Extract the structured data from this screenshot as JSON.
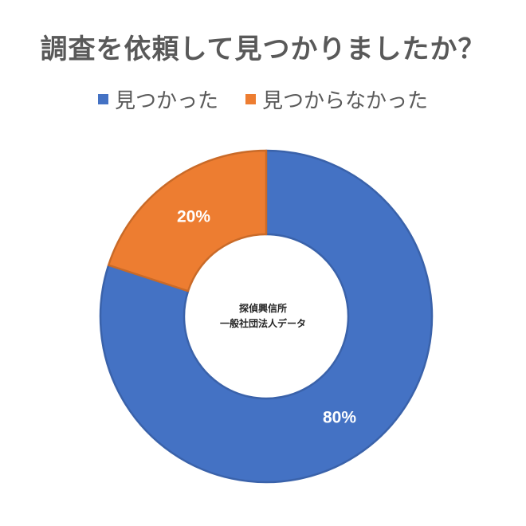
{
  "chart_data": {
    "type": "pie",
    "style": "donut",
    "title": "調査を依頼して見つかりましたか？",
    "legend_position": "top",
    "slices": [
      {
        "name": "見つかった",
        "value": 80,
        "label": "80%",
        "color": "#4472C4"
      },
      {
        "name": "見つからなかった",
        "value": 20,
        "label": "20%",
        "color": "#ED7D31"
      }
    ],
    "center_text": [
      "探偵興信所",
      "一般社団法人データ"
    ]
  }
}
